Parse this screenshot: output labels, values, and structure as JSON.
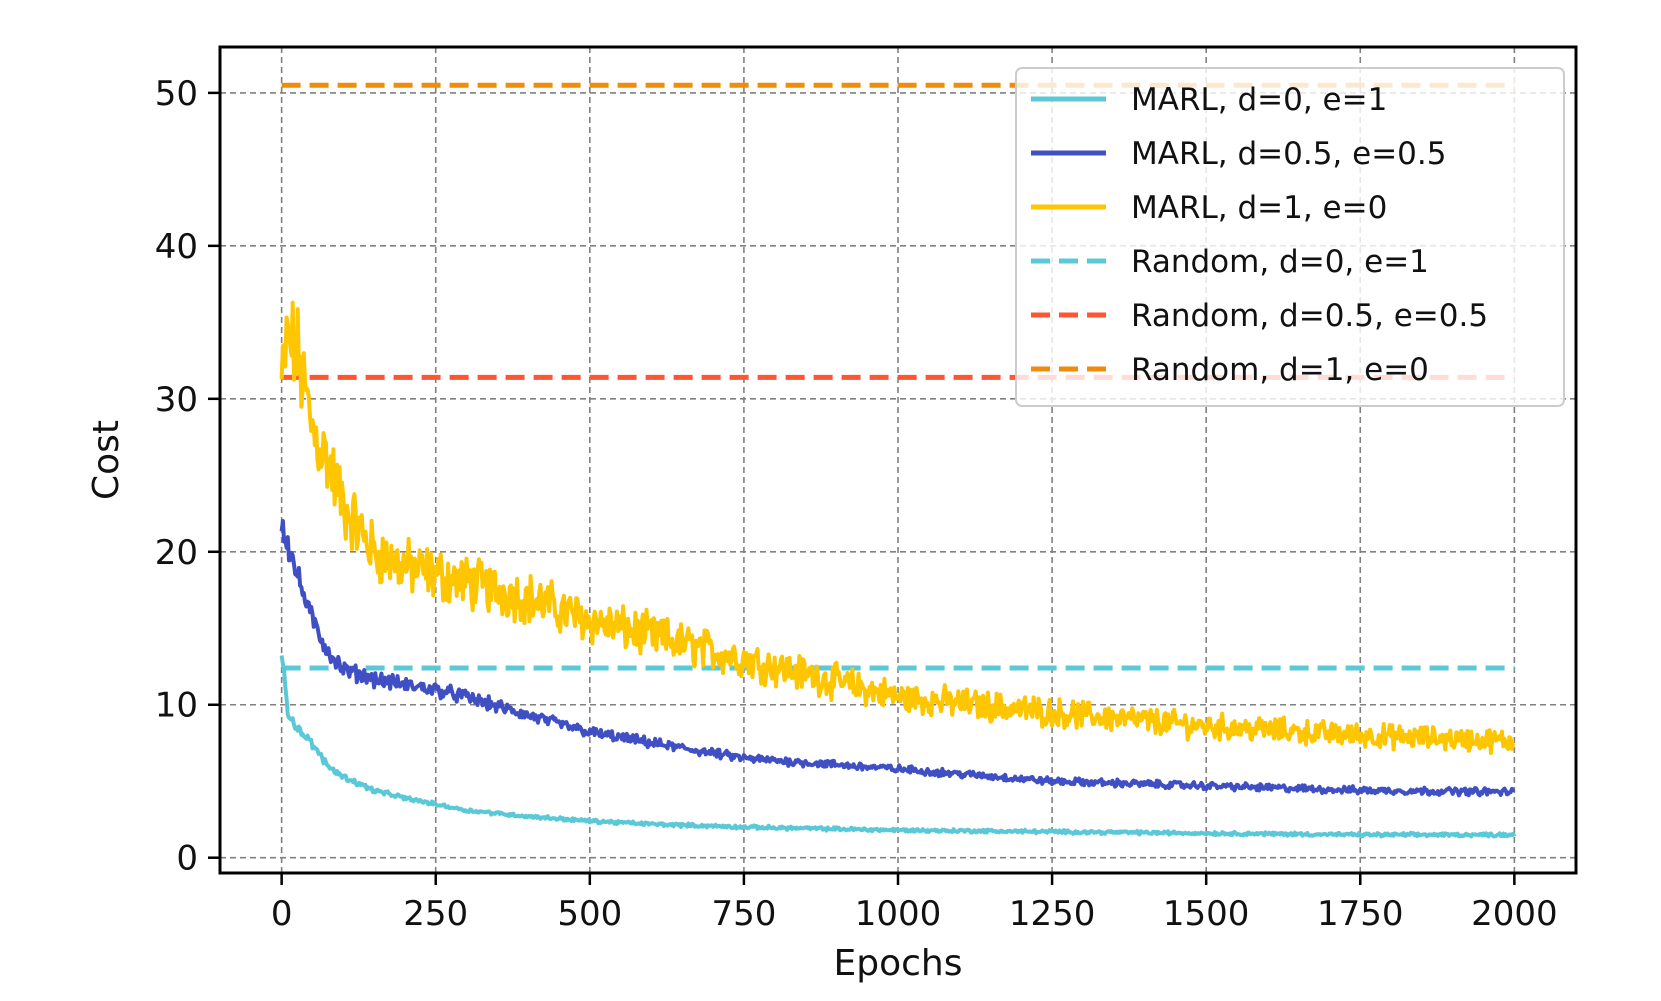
{
  "chart_data": {
    "type": "line",
    "title": "",
    "xlabel": "Epochs",
    "ylabel": "Cost",
    "xlim": [
      -100,
      2100
    ],
    "ylim": [
      -1,
      53
    ],
    "xticks": [
      0,
      250,
      500,
      750,
      1000,
      1250,
      1500,
      1750,
      2000
    ],
    "xtick_labels": [
      "0",
      "250",
      "500",
      "750",
      "1000",
      "1250",
      "1500",
      "1750",
      "2000"
    ],
    "yticks": [
      0,
      10,
      20,
      30,
      40,
      50
    ],
    "ytick_labels": [
      "0",
      "10",
      "20",
      "30",
      "40",
      "50"
    ],
    "grid": true,
    "legend_position": "top-right",
    "colors": {
      "cyan": "#5bc8d8",
      "blue": "#4050c4",
      "yellow": "#fec600",
      "red": "#ff5533",
      "orange": "#ef8c0a"
    },
    "series": [
      {
        "name": "MARL, d=0, e=1",
        "style": "solid",
        "color": "#5bc8d8",
        "noise": 0.35,
        "x": [
          0,
          5,
          10,
          20,
          30,
          50,
          75,
          100,
          150,
          200,
          250,
          300,
          400,
          500,
          600,
          750,
          1000,
          1250,
          1500,
          1750,
          2000
        ],
        "y": [
          13.0,
          12.0,
          9.5,
          8.8,
          8.3,
          7.4,
          6.0,
          5.3,
          4.4,
          3.9,
          3.5,
          3.1,
          2.7,
          2.4,
          2.2,
          2.0,
          1.8,
          1.7,
          1.6,
          1.5,
          1.5
        ]
      },
      {
        "name": "MARL, d=0.5, e=0.5",
        "style": "solid",
        "color": "#4050c4",
        "noise": 0.75,
        "x": [
          0,
          10,
          25,
          50,
          75,
          100,
          150,
          200,
          250,
          300,
          400,
          500,
          600,
          750,
          1000,
          1250,
          1500,
          1750,
          2000
        ],
        "y": [
          22.0,
          20.5,
          18.5,
          15.5,
          13.5,
          12.3,
          11.7,
          11.3,
          11.0,
          10.5,
          9.3,
          8.2,
          7.5,
          6.5,
          5.8,
          5.0,
          4.7,
          4.4,
          4.3
        ]
      },
      {
        "name": "MARL, d=1, e=0",
        "style": "solid",
        "color": "#fec600",
        "noise": 2.4,
        "x": [
          0,
          10,
          25,
          50,
          75,
          100,
          150,
          200,
          250,
          300,
          400,
          500,
          600,
          700,
          800,
          900,
          1000,
          1250,
          1500,
          1750,
          2000
        ],
        "y": [
          31.0,
          34.0,
          33.0,
          28.0,
          26.0,
          23.0,
          20.0,
          19.0,
          18.5,
          18.0,
          17.0,
          15.5,
          14.5,
          13.5,
          12.5,
          11.5,
          10.5,
          9.5,
          8.6,
          8.0,
          7.6
        ]
      },
      {
        "name": "Random, d=0, e=1",
        "style": "dashed",
        "color": "#5bc8d8",
        "x": [
          0,
          2000
        ],
        "y": [
          12.4,
          12.4
        ]
      },
      {
        "name": "Random, d=0.5, e=0.5",
        "style": "dashed",
        "color": "#ff5533",
        "x": [
          0,
          2000
        ],
        "y": [
          31.4,
          31.4
        ]
      },
      {
        "name": "Random, d=1, e=0",
        "style": "dashed",
        "color": "#ef8c0a",
        "x": [
          0,
          2000
        ],
        "y": [
          50.5,
          50.5
        ]
      }
    ]
  }
}
